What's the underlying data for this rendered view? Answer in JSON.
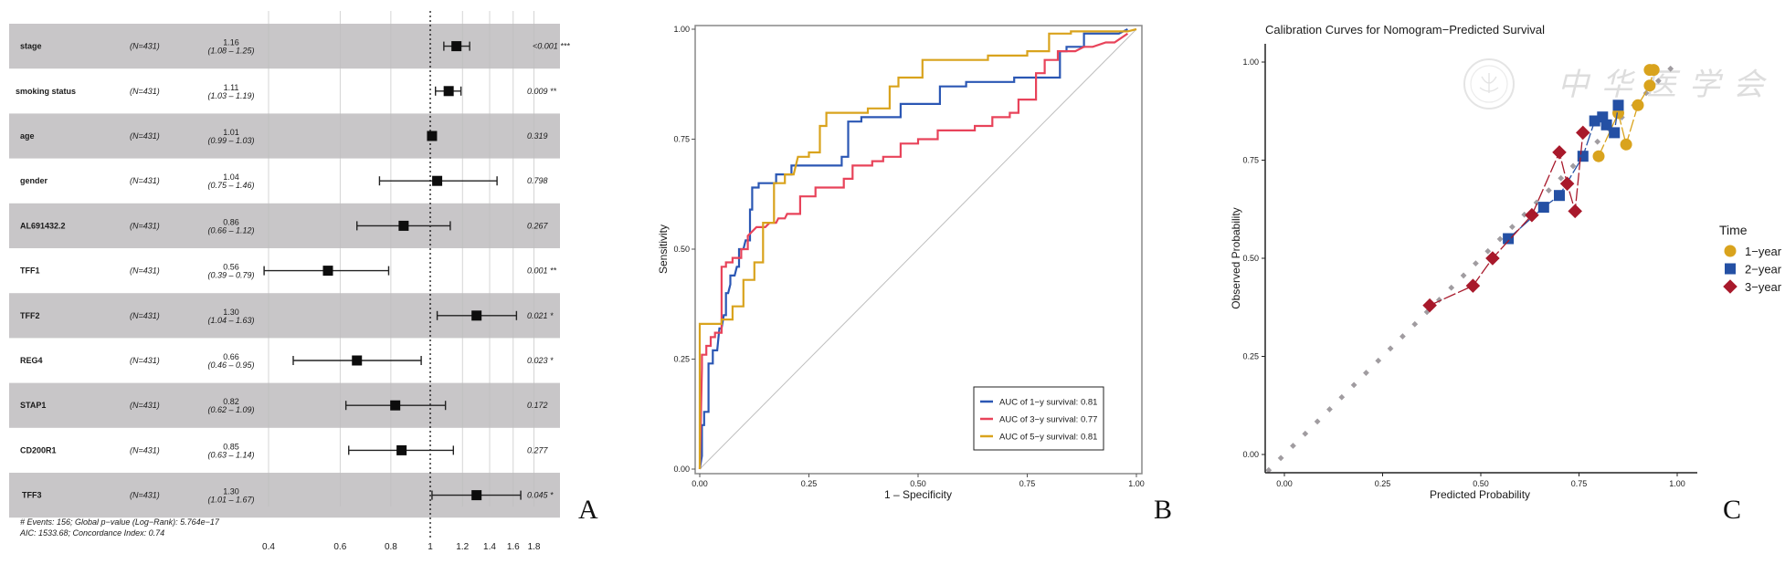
{
  "chart_data": [
    {
      "panel": "A",
      "type": "forest",
      "xscale": "log",
      "xticks": [
        0.4,
        0.6,
        0.8,
        1,
        1.2,
        1.4,
        1.6,
        1.8
      ],
      "reference_line": 1,
      "rows": [
        {
          "label": "stage",
          "n": "(N=431)",
          "hr": 1.16,
          "ci_low": 1.08,
          "ci_high": 1.25,
          "hr_text": "1.16",
          "ci_text": "(1.08 – 1.25)",
          "p_text": "<0.001 ***"
        },
        {
          "label": "smoking status",
          "n": "(N=431)",
          "hr": 1.11,
          "ci_low": 1.03,
          "ci_high": 1.19,
          "hr_text": "1.11",
          "ci_text": "(1.03 – 1.19)",
          "p_text": "0.009 **"
        },
        {
          "label": "age",
          "n": "(N=431)",
          "hr": 1.01,
          "ci_low": 0.99,
          "ci_high": 1.03,
          "hr_text": "1.01",
          "ci_text": "(0.99 – 1.03)",
          "p_text": "0.319"
        },
        {
          "label": "gender",
          "n": "(N=431)",
          "hr": 1.04,
          "ci_low": 0.75,
          "ci_high": 1.46,
          "hr_text": "1.04",
          "ci_text": "(0.75 – 1.46)",
          "p_text": "0.798"
        },
        {
          "label": "AL691432.2",
          "n": "(N=431)",
          "hr": 0.86,
          "ci_low": 0.66,
          "ci_high": 1.12,
          "hr_text": "0.86",
          "ci_text": "(0.66 – 1.12)",
          "p_text": "0.267"
        },
        {
          "label": "TFF1",
          "n": "(N=431)",
          "hr": 0.56,
          "ci_low": 0.39,
          "ci_high": 0.79,
          "hr_text": "0.56",
          "ci_text": "(0.39 – 0.79)",
          "p_text": "0.001 **"
        },
        {
          "label": "TFF2",
          "n": "(N=431)",
          "hr": 1.3,
          "ci_low": 1.04,
          "ci_high": 1.63,
          "hr_text": "1.30",
          "ci_text": "(1.04 – 1.63)",
          "p_text": "0.021 *"
        },
        {
          "label": "REG4",
          "n": "(N=431)",
          "hr": 0.66,
          "ci_low": 0.46,
          "ci_high": 0.95,
          "hr_text": "0.66",
          "ci_text": "(0.46 – 0.95)",
          "p_text": "0.023 *"
        },
        {
          "label": "STAP1",
          "n": "(N=431)",
          "hr": 0.82,
          "ci_low": 0.62,
          "ci_high": 1.09,
          "hr_text": "0.82",
          "ci_text": "(0.62 – 1.09)",
          "p_text": "0.172"
        },
        {
          "label": "CD200R1",
          "n": "(N=431)",
          "hr": 0.85,
          "ci_low": 0.63,
          "ci_high": 1.14,
          "hr_text": "0.85",
          "ci_text": "(0.63 – 1.14)",
          "p_text": "0.277"
        },
        {
          "label": "TFF3",
          "n": "(N=431)",
          "hr": 1.3,
          "ci_low": 1.01,
          "ci_high": 1.67,
          "hr_text": "1.30",
          "ci_text": "(1.01 – 1.67)",
          "p_text": "0.045 *"
        }
      ],
      "footnote_lines": [
        "# Events: 156; Global p−value (Log−Rank): 5.764e−17",
        "AIC: 1533.68; Concordance Index: 0.74"
      ],
      "band_color": "#c8c6c8",
      "letter": "A"
    },
    {
      "panel": "B",
      "type": "line",
      "title": "",
      "xlabel": "1 – Specificity",
      "ylabel": "Sensitivity",
      "xlim": [
        0,
        1
      ],
      "ylim": [
        0,
        1
      ],
      "xticks": [
        "0.00",
        "0.25",
        "0.50",
        "0.75",
        "1.00"
      ],
      "yticks": [
        "0.00",
        "0.25",
        "0.50",
        "0.75",
        "1.00"
      ],
      "legend_position": "bottom-right",
      "series": [
        {
          "name": "AUC of 1−y survival: 0.81",
          "color": "#2b57b4",
          "x": [
            0,
            0.005,
            0.005,
            0.01,
            0.01,
            0.02,
            0.02,
            0.03,
            0.03,
            0.04,
            0.045,
            0.05,
            0.055,
            0.06,
            0.06,
            0.065,
            0.07,
            0.07,
            0.08,
            0.085,
            0.09,
            0.09,
            0.1,
            0.105,
            0.115,
            0.115,
            0.12,
            0.12,
            0.135,
            0.135,
            0.175,
            0.175,
            0.21,
            0.21,
            0.325,
            0.325,
            0.34,
            0.34,
            0.37,
            0.37,
            0.46,
            0.46,
            0.55,
            0.55,
            0.61,
            0.61,
            0.72,
            0.72,
            0.825,
            0.825,
            0.84,
            0.84,
            0.88,
            0.88,
            0.96,
            0.98
          ],
          "y": [
            0,
            0.03,
            0.1,
            0.1,
            0.13,
            0.13,
            0.24,
            0.24,
            0.27,
            0.27,
            0.32,
            0.32,
            0.35,
            0.35,
            0.4,
            0.4,
            0.42,
            0.44,
            0.44,
            0.46,
            0.46,
            0.5,
            0.5,
            0.52,
            0.52,
            0.59,
            0.59,
            0.64,
            0.64,
            0.65,
            0.65,
            0.67,
            0.67,
            0.69,
            0.69,
            0.71,
            0.71,
            0.79,
            0.79,
            0.8,
            0.8,
            0.83,
            0.83,
            0.87,
            0.87,
            0.88,
            0.88,
            0.89,
            0.89,
            0.95,
            0.95,
            0.96,
            0.96,
            0.99,
            0.99,
            1.0
          ]
        },
        {
          "name": "AUC of 3−y survival: 0.77",
          "color": "#e8435a",
          "x": [
            0,
            0.005,
            0.005,
            0.015,
            0.015,
            0.025,
            0.025,
            0.035,
            0.035,
            0.05,
            0.05,
            0.06,
            0.06,
            0.075,
            0.075,
            0.095,
            0.095,
            0.11,
            0.11,
            0.13,
            0.15,
            0.16,
            0.175,
            0.18,
            0.195,
            0.2,
            0.23,
            0.23,
            0.265,
            0.265,
            0.33,
            0.33,
            0.35,
            0.35,
            0.395,
            0.395,
            0.42,
            0.42,
            0.46,
            0.46,
            0.5,
            0.5,
            0.545,
            0.545,
            0.63,
            0.63,
            0.67,
            0.67,
            0.71,
            0.71,
            0.73,
            0.73,
            0.77,
            0.77,
            0.79,
            0.79,
            0.82,
            0.82,
            0.86,
            0.88,
            0.9,
            0.93,
            0.95,
            0.98
          ],
          "y": [
            0,
            0.23,
            0.26,
            0.26,
            0.28,
            0.28,
            0.3,
            0.3,
            0.31,
            0.31,
            0.46,
            0.46,
            0.47,
            0.47,
            0.48,
            0.48,
            0.5,
            0.5,
            0.53,
            0.55,
            0.55,
            0.56,
            0.56,
            0.57,
            0.57,
            0.58,
            0.58,
            0.62,
            0.62,
            0.64,
            0.64,
            0.66,
            0.66,
            0.69,
            0.69,
            0.7,
            0.7,
            0.71,
            0.71,
            0.74,
            0.74,
            0.75,
            0.75,
            0.77,
            0.77,
            0.78,
            0.78,
            0.8,
            0.8,
            0.81,
            0.81,
            0.84,
            0.84,
            0.9,
            0.9,
            0.93,
            0.93,
            0.95,
            0.95,
            0.96,
            0.96,
            0.97,
            0.97,
            0.99
          ]
        },
        {
          "name": "AUC of 5−y survival: 0.81",
          "color": "#d9a31d",
          "x": [
            0,
            0,
            0.05,
            0.05,
            0.075,
            0.075,
            0.1,
            0.1,
            0.125,
            0.125,
            0.145,
            0.145,
            0.17,
            0.17,
            0.195,
            0.195,
            0.215,
            0.225,
            0.25,
            0.25,
            0.275,
            0.275,
            0.29,
            0.29,
            0.385,
            0.385,
            0.435,
            0.435,
            0.455,
            0.455,
            0.51,
            0.51,
            0.66,
            0.66,
            0.75,
            0.75,
            0.8,
            0.8,
            0.85,
            0.85,
            0.98,
            1.0
          ],
          "y": [
            0,
            0.33,
            0.33,
            0.34,
            0.34,
            0.37,
            0.37,
            0.43,
            0.43,
            0.47,
            0.47,
            0.56,
            0.56,
            0.65,
            0.65,
            0.67,
            0.67,
            0.71,
            0.71,
            0.72,
            0.72,
            0.78,
            0.78,
            0.81,
            0.81,
            0.82,
            0.82,
            0.87,
            0.87,
            0.89,
            0.89,
            0.93,
            0.93,
            0.94,
            0.94,
            0.95,
            0.95,
            0.99,
            0.99,
            0.995,
            0.995,
            1.0
          ]
        }
      ],
      "diagonal": true,
      "letter": "B"
    },
    {
      "panel": "C",
      "type": "scatter",
      "title": "Calibration Curves for Nomogram−Predicted Survival",
      "xlabel": "Predicted Probability",
      "ylabel": "Observed Probability",
      "xlim": [
        -0.04,
        1.05
      ],
      "ylim": [
        -0.04,
        1.04
      ],
      "xticks": [
        "0.00",
        "0.25",
        "0.50",
        "0.75",
        "1.00"
      ],
      "yticks": [
        "0.00",
        "0.25",
        "0.50",
        "0.75",
        "1.00"
      ],
      "legend_title": "Time",
      "legend_position": "right",
      "reference_diagonal": {
        "color": "#a09ca0",
        "style": "dotted-diamonds",
        "from": -0.04,
        "to": 1.0
      },
      "series": [
        {
          "name": "1−year",
          "marker": "circle",
          "color": "#d9a31d",
          "x": [
            0.8,
            0.85,
            0.87,
            0.9,
            0.93,
            0.94,
            0.93
          ],
          "y": [
            0.76,
            0.87,
            0.79,
            0.89,
            0.94,
            0.98,
            0.98
          ]
        },
        {
          "name": "2−year",
          "marker": "square",
          "color": "#2450a4",
          "x": [
            0.57,
            0.66,
            0.7,
            0.76,
            0.79,
            0.81,
            0.82,
            0.84,
            0.85
          ],
          "y": [
            0.55,
            0.63,
            0.66,
            0.76,
            0.85,
            0.86,
            0.84,
            0.82,
            0.89
          ]
        },
        {
          "name": "3−year",
          "marker": "diamond",
          "color": "#a8192b",
          "x": [
            0.37,
            0.48,
            0.53,
            0.63,
            0.7,
            0.72,
            0.74,
            0.76
          ],
          "y": [
            0.38,
            0.43,
            0.5,
            0.61,
            0.77,
            0.69,
            0.62,
            0.82
          ]
        }
      ],
      "watermark": "中华医学会",
      "letter": "C"
    }
  ]
}
